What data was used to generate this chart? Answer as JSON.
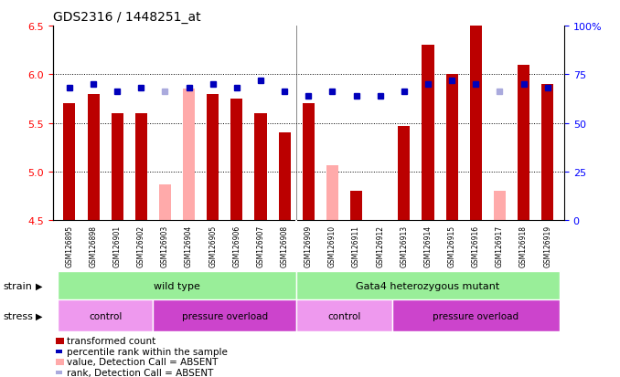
{
  "title": "GDS2316 / 1448251_at",
  "samples": [
    "GSM126895",
    "GSM126898",
    "GSM126901",
    "GSM126902",
    "GSM126903",
    "GSM126904",
    "GSM126905",
    "GSM126906",
    "GSM126907",
    "GSM126908",
    "GSM126909",
    "GSM126910",
    "GSM126911",
    "GSM126912",
    "GSM126913",
    "GSM126914",
    "GSM126915",
    "GSM126916",
    "GSM126917",
    "GSM126918",
    "GSM126919"
  ],
  "bar_values": [
    5.7,
    5.8,
    5.6,
    5.6,
    null,
    null,
    5.8,
    5.75,
    5.6,
    5.4,
    5.7,
    null,
    4.8,
    null,
    5.47,
    6.3,
    6.0,
    6.5,
    null,
    6.1,
    5.9
  ],
  "bar_absent_values": [
    null,
    null,
    null,
    null,
    4.87,
    5.85,
    null,
    null,
    null,
    null,
    null,
    5.06,
    null,
    null,
    null,
    null,
    null,
    null,
    4.8,
    null,
    null
  ],
  "rank_values": [
    68,
    70,
    66,
    68,
    null,
    68,
    70,
    68,
    72,
    66,
    64,
    66,
    64,
    64,
    66,
    70,
    72,
    70,
    null,
    70,
    68
  ],
  "rank_absent_values": [
    null,
    null,
    null,
    null,
    66,
    null,
    null,
    null,
    null,
    null,
    null,
    null,
    null,
    null,
    null,
    null,
    null,
    null,
    66,
    null,
    null
  ],
  "ylim": [
    4.5,
    6.5
  ],
  "yticks": [
    4.5,
    5.0,
    5.5,
    6.0,
    6.5
  ],
  "y2lim": [
    0,
    100
  ],
  "y2ticks": [
    0,
    25,
    50,
    75,
    100
  ],
  "bar_color": "#bb0000",
  "bar_absent_color": "#ffaaaa",
  "rank_color": "#0000bb",
  "rank_absent_color": "#aaaadd",
  "plot_bg": "#ffffff",
  "tick_bg": "#cccccc",
  "strain_wt_color": "#99ee99",
  "strain_mut_color": "#99ee99",
  "stress_control_color": "#ee99ee",
  "stress_overload_color": "#cc44cc"
}
